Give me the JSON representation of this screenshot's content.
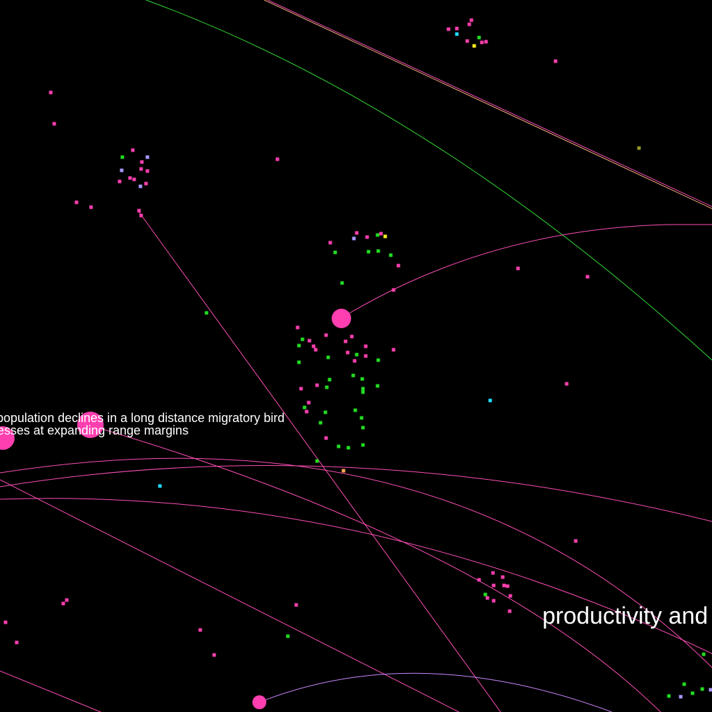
{
  "labels": {
    "label_1": "population declines in a long distance migratory bird",
    "label_2": "esses at expanding range margins",
    "label_3": "productivity and"
  },
  "colors": {
    "background": "#000000",
    "magenta": "#ff3fb0",
    "pink_line": "#ff4fb8",
    "green": "#22dd22",
    "orange": "#ffaa55",
    "lavender": "#aa99ff",
    "cyan": "#22ddff",
    "yellow": "#ffee22",
    "olive": "#999922",
    "edge_green": "#33dd33",
    "edge_peach": "#ffb080",
    "edge_violet": "#cc88ff"
  }
}
